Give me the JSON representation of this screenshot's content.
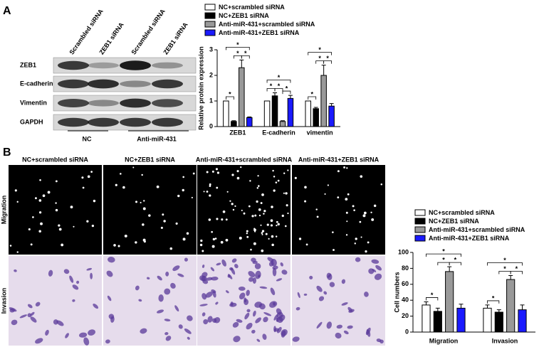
{
  "panel_labels": [
    "A",
    "B"
  ],
  "blot": {
    "columns": [
      "Scrambled siRNA",
      "ZEB1 siRNA",
      "Scrambled siRNA",
      "ZEB1 siRNA"
    ],
    "rows": [
      "ZEB1",
      "E-cadherin",
      "Vimentin",
      "GAPDH"
    ],
    "groups": [
      "NC",
      "Anti-miR-431"
    ]
  },
  "micrographs": {
    "columns": [
      "NC+scrambled siRNA",
      "NC+ZEB1 siRNA",
      "Anti-miR-431+scrambled siRNA",
      "Anti-miR-431+ZEB1 siRNA"
    ],
    "rows": [
      "Migration",
      "Invasion"
    ]
  },
  "chart_data": [
    {
      "type": "bar",
      "y_label": "Relative protein expression",
      "significance_marker": "*",
      "categories": [
        "ZEB1",
        "E-cadherin",
        "vimentin"
      ],
      "series": [
        {
          "name": "NC+scrambled siRNA",
          "color": "#ffffff",
          "values": [
            1,
            1,
            1
          ],
          "errors": [
            0,
            0,
            0
          ]
        },
        {
          "name": "NC+ZEB1 siRNA",
          "color": "#000000",
          "values": [
            0.2,
            1.2,
            0.7
          ],
          "errors": [
            0.03,
            0.12,
            0.05
          ]
        },
        {
          "name": "Anti-miR-431+scrambled siRNA",
          "color": "#999999",
          "values": [
            2.3,
            0.2,
            2.0
          ],
          "errors": [
            0.3,
            0.03,
            0.4
          ]
        },
        {
          "name": "Anti-miR-431+ZEB1 siRNA",
          "color": "#1a1aff",
          "values": [
            0.35,
            1.1,
            0.8
          ],
          "errors": [
            0.03,
            0.12,
            0.1
          ]
        }
      ],
      "ylim": [
        0,
        3
      ],
      "yticks": [
        0,
        1,
        2,
        3
      ]
    },
    {
      "type": "bar",
      "y_label": "Cell numbers",
      "significance_marker": "*",
      "categories": [
        "Migration",
        "Invasion"
      ],
      "series": [
        {
          "name": "NC+scrambled siRNA",
          "color": "#ffffff",
          "values": [
            34,
            30
          ],
          "errors": [
            4,
            4
          ]
        },
        {
          "name": "NC+ZEB1 siRNA",
          "color": "#000000",
          "values": [
            26,
            25
          ],
          "errors": [
            4,
            3
          ]
        },
        {
          "name": "Anti-miR-431+scrambled siRNA",
          "color": "#999999",
          "values": [
            76,
            66
          ],
          "errors": [
            6,
            5
          ]
        },
        {
          "name": "Anti-miR-431+ZEB1 siRNA",
          "color": "#1a1aff",
          "values": [
            30,
            28
          ],
          "errors": [
            5,
            6
          ]
        }
      ],
      "ylim": [
        0,
        100
      ],
      "yticks": [
        0,
        20,
        40,
        60,
        80,
        100
      ]
    }
  ]
}
